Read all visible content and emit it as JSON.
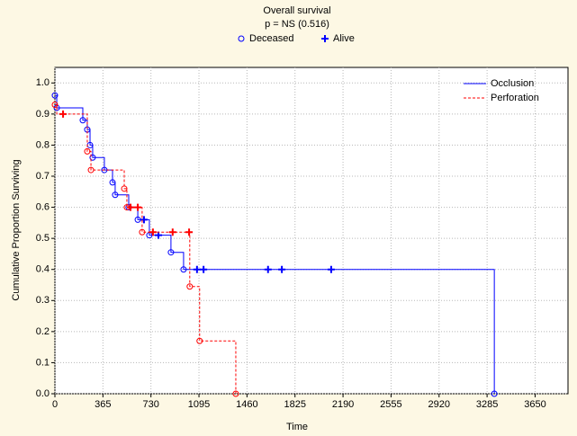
{
  "chart_data": {
    "type": "survival",
    "title": "Overall survival",
    "subtitle": "p = NS (0.516)",
    "marker_legend": [
      "Deceased",
      "Alive"
    ],
    "xlabel": "Time",
    "ylabel": "Cumulative Proportion Surviving",
    "xlim": [
      0,
      3900
    ],
    "ylim": [
      0,
      1.05
    ],
    "xticks": [
      0,
      365,
      730,
      1095,
      1460,
      1825,
      2190,
      2555,
      2920,
      3285,
      3650
    ],
    "yticks": [
      {
        "value": 0,
        "label": "0.0"
      },
      0.1,
      0.2,
      0.3,
      0.4,
      0.5,
      0.6,
      0.7,
      0.8,
      0.9,
      {
        "value": 1,
        "label": "1.0"
      }
    ],
    "grid": true,
    "legend": "upper right",
    "series": [
      {
        "name": "Occlusion",
        "color": "#0000ff",
        "dash": false,
        "x": [
          0,
          14,
          212,
          246,
          267,
          287,
          376,
          438,
          458,
          561,
          630,
          718,
          882,
          978,
          3340
        ],
        "values": [
          0.96,
          0.92,
          0.88,
          0.85,
          0.8,
          0.76,
          0.72,
          0.68,
          0.64,
          0.6,
          0.56,
          0.51,
          0.455,
          0.4,
          0
        ],
        "deceased": {
          "x": [
            0,
            14,
            212,
            246,
            267,
            287,
            376,
            438,
            458,
            561,
            630,
            718,
            882,
            978,
            3340
          ],
          "values": [
            0.96,
            0.92,
            0.88,
            0.85,
            0.8,
            0.76,
            0.72,
            0.68,
            0.64,
            0.6,
            0.56,
            0.51,
            0.455,
            0.4,
            0
          ]
        },
        "alive": {
          "x": [
            677,
            787,
            1080,
            1130,
            1620,
            1725,
            2100
          ],
          "values": [
            0.56,
            0.51,
            0.4,
            0.4,
            0.4,
            0.4,
            0.4
          ]
        }
      },
      {
        "name": "Perforation",
        "color": "#ff0000",
        "dash": true,
        "x": [
          0,
          14,
          246,
          274,
          527,
          547,
          663,
          1025,
          1100,
          1375
        ],
        "values": [
          0.93,
          0.9,
          0.78,
          0.72,
          0.66,
          0.6,
          0.52,
          0.345,
          0.17,
          0
        ],
        "deceased": {
          "x": [
            0,
            246,
            274,
            527,
            547,
            663,
            1025,
            1100,
            1375
          ],
          "values": [
            0.93,
            0.78,
            0.72,
            0.66,
            0.6,
            0.52,
            0.345,
            0.17,
            0
          ]
        },
        "alive": {
          "x": [
            62,
            575,
            630,
            745,
            895,
            1020
          ],
          "values": [
            0.9,
            0.6,
            0.6,
            0.52,
            0.52,
            0.52
          ]
        }
      }
    ]
  }
}
